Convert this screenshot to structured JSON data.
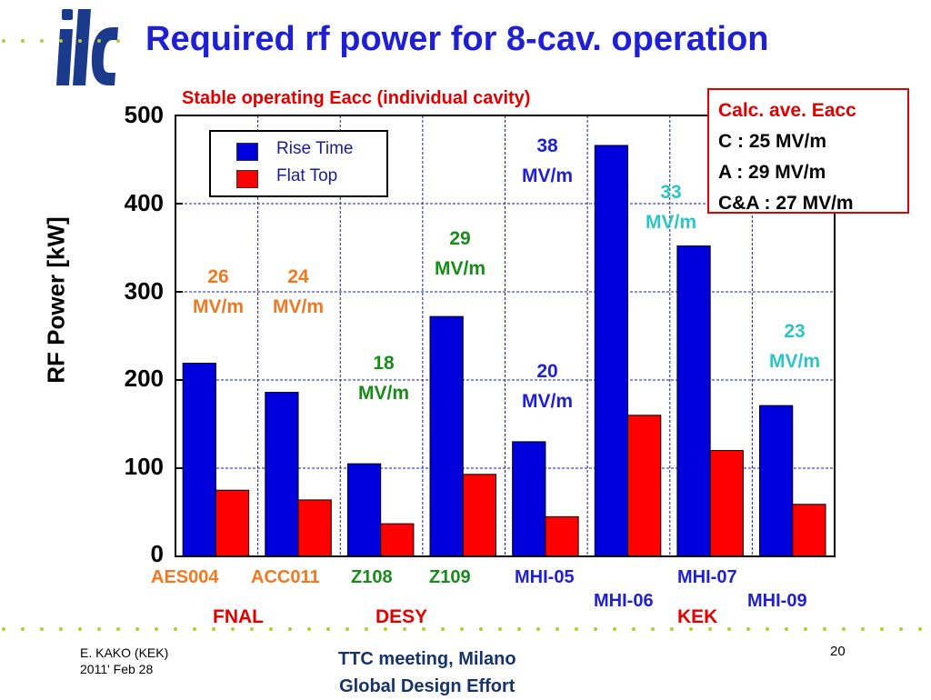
{
  "header": {
    "logo_text": "ilc",
    "title": "Required rf power for 8-cav. operation",
    "subtitle": "Stable operating Eacc (individual cavity)"
  },
  "info_box": {
    "title": "Calc. ave. Eacc",
    "lines": [
      "C : 25 MV/m",
      "A : 29 MV/m",
      "C&A : 27 MV/m"
    ]
  },
  "groups": {
    "fnal": "FNAL",
    "desy": "DESY",
    "kek": "KEK"
  },
  "annotations": [
    {
      "value": "26",
      "unit": "MV/m",
      "color": "#f07820"
    },
    {
      "value": "24",
      "unit": "MV/m",
      "color": "#f07820"
    },
    {
      "value": "18",
      "unit": "MV/m",
      "color": "#1a8a1a"
    },
    {
      "value": "29",
      "unit": "MV/m",
      "color": "#1a8a1a"
    },
    {
      "value": "20",
      "unit": "MV/m",
      "color": "#1f1fd6"
    },
    {
      "value": "38",
      "unit": "MV/m",
      "color": "#1f1fd6"
    },
    {
      "value": "33",
      "unit": "MV/m",
      "color": "#2ec4c4"
    },
    {
      "value": "23",
      "unit": "MV/m",
      "color": "#2ec4c4"
    }
  ],
  "category_colors": [
    "#f07820",
    "#f07820",
    "#1a8a1a",
    "#1a8a1a",
    "#1f1fd6",
    "#1f1fd6",
    "#1f1fd6",
    "#1f1fd6"
  ],
  "footer": {
    "author": "E. KAKO (KEK)",
    "date": "2011' Feb 28",
    "meeting": "TTC meeting, Milano",
    "org": "Global Design Effort",
    "page": "20"
  },
  "colors": {
    "rise": "#0000dd",
    "flat": "#ff0000",
    "accent_blue": "#1f1fd6",
    "accent_red": "#e00000",
    "dots": "#b5c93a"
  },
  "chart_data": {
    "type": "bar",
    "title": "",
    "xlabel": "",
    "ylabel": "RF Power  [kW]",
    "ylim": [
      0,
      500
    ],
    "yticks": [
      0,
      100,
      200,
      300,
      400,
      500
    ],
    "grid": true,
    "legend_position": "top-left",
    "categories": [
      "AES004",
      "ACC011",
      "Z108",
      "Z109",
      "MHI-05",
      "MHI-06",
      "MHI-07",
      "MHI-09"
    ],
    "series": [
      {
        "name": "Rise Time",
        "color": "#0000dd",
        "values": [
          219,
          186,
          105,
          272,
          130,
          466,
          352,
          171
        ]
      },
      {
        "name": "Flat Top",
        "color": "#ff0000",
        "values": [
          75,
          64,
          37,
          93,
          45,
          160,
          120,
          59
        ]
      }
    ]
  }
}
